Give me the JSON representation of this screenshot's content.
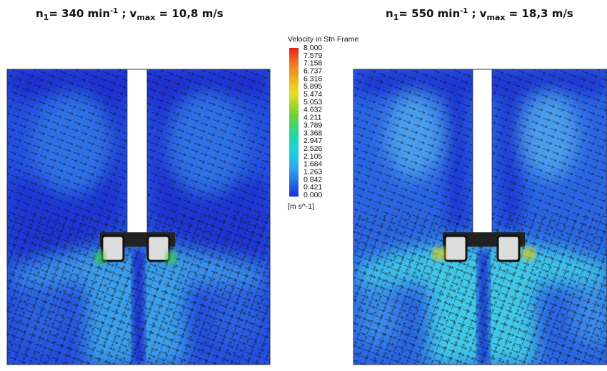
{
  "panels": [
    {
      "title": {
        "n": "n",
        "n_sub": "1",
        "n_text": "= 340 min",
        "n_sup": "-1",
        "v": " ; v",
        "v_sub": "max",
        "v_text": " = 10,8 m/s"
      }
    },
    {
      "title": {
        "n": "n",
        "n_sub": "1",
        "n_text": "= 550 min",
        "n_sup": "-1",
        "v": " ; v",
        "v_sub": "max",
        "v_text": " = 18,3 m/s"
      }
    }
  ],
  "legend": {
    "title": "Velocity in Stn Frame",
    "ticks": [
      "8.000",
      "7.579",
      "7.158",
      "6.737",
      "6.316",
      "5.895",
      "5.474",
      "5.053",
      "4.632",
      "4.211",
      "3.789",
      "3.368",
      "2.947",
      "2.526",
      "2.105",
      "1.684",
      "1.263",
      "0.842",
      "0.421",
      "0.000"
    ],
    "unit": "[m s^-1]"
  }
}
